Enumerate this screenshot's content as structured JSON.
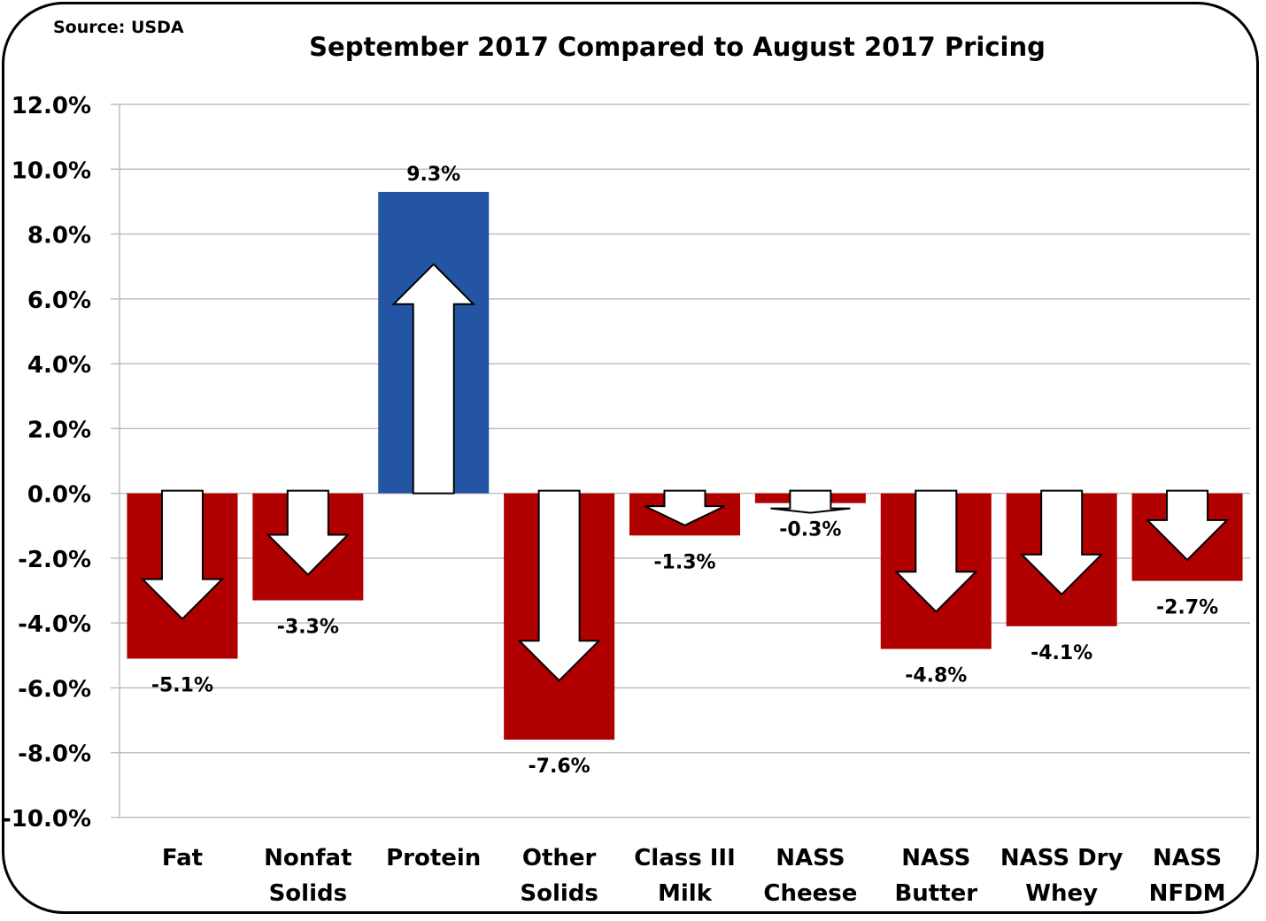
{
  "chart_data": {
    "type": "bar",
    "title": "September 2017 Compared to August 2017 Pricing",
    "source_note": "Source: USDA",
    "categories": [
      [
        "Fat"
      ],
      [
        "Nonfat",
        "Solids"
      ],
      [
        "Protein"
      ],
      [
        "Other",
        "Solids"
      ],
      [
        "Class III",
        "Milk"
      ],
      [
        "NASS",
        "Cheese"
      ],
      [
        "NASS",
        "Butter"
      ],
      [
        "NASS Dry",
        "Whey"
      ],
      [
        "NASS",
        "NFDM"
      ]
    ],
    "values": [
      -5.1,
      -3.3,
      9.3,
      -7.6,
      -1.3,
      -0.3,
      -4.8,
      -4.1,
      -2.7
    ],
    "data_labels": [
      "-5.1%",
      "-3.3%",
      "9.3%",
      "-7.6%",
      "-1.3%",
      "-0.3%",
      "-4.8%",
      "-4.1%",
      "-2.7%"
    ],
    "ylim": [
      -10,
      12
    ],
    "yticks": [
      12,
      10,
      8,
      6,
      4,
      2,
      0,
      -2,
      -4,
      -6,
      -8,
      -10
    ],
    "ytick_labels": [
      "12.0%",
      "10.0%",
      "8.0%",
      "6.0%",
      "4.0%",
      "2.0%",
      "0.0%",
      "-2.0%",
      "-4.0%",
      "-6.0%",
      "-8.0%",
      "-10.0%"
    ],
    "grid": true,
    "colors": {
      "positive": "#2455A4",
      "negative": "#B00000",
      "arrow_fill": "#FFFFFF",
      "grid": "#BFBFBF"
    },
    "markers": "white arrow inside each bar pointing in direction of change"
  }
}
